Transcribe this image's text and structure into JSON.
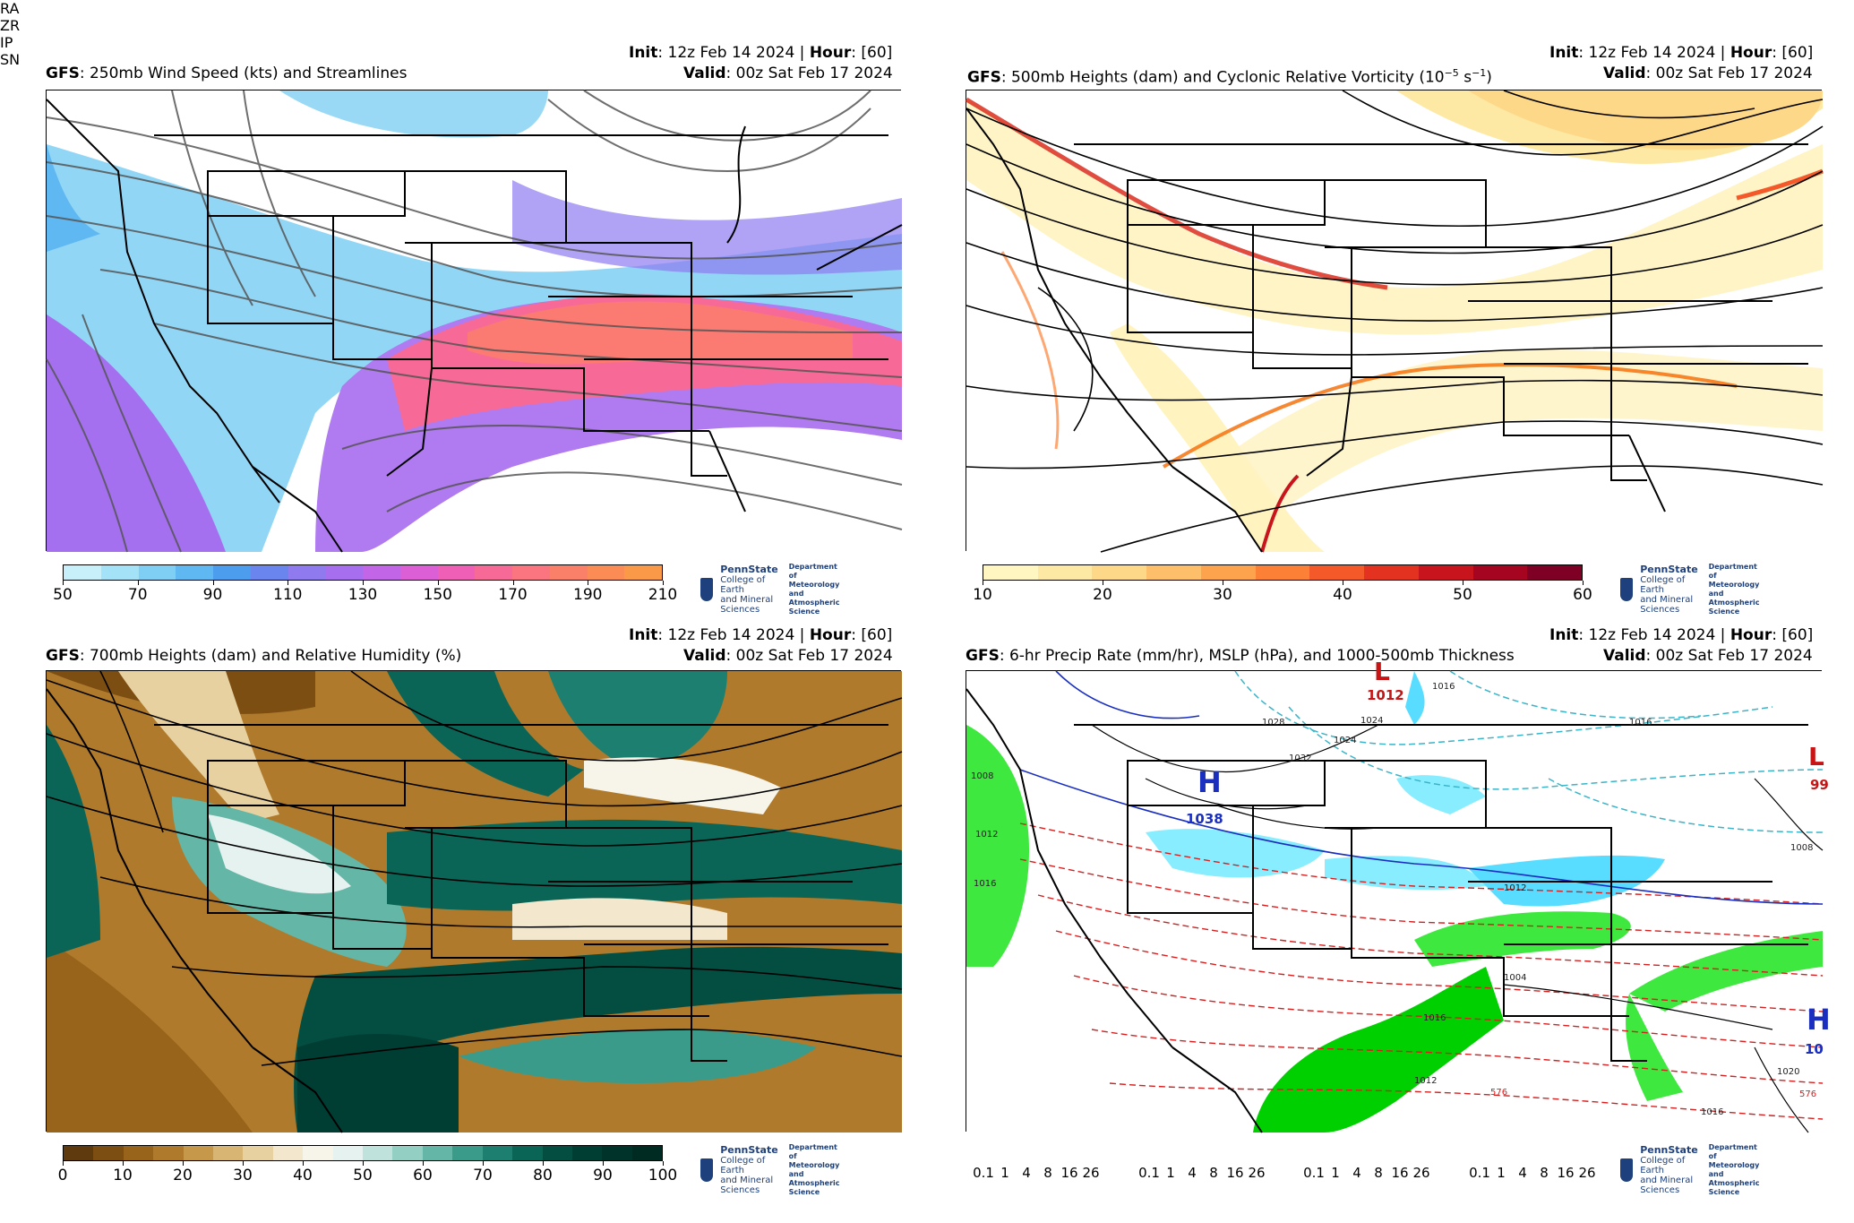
{
  "panels": [
    {
      "model": "GFS",
      "title": ": 250mb Wind Speed (kts) and Streamlines",
      "init_label": "Init",
      "init_value": ": 12z Feb 14 2024 | ",
      "hour_label": "Hour",
      "hour_value": ": [60]",
      "valid_label": "Valid",
      "valid_value": ": 00z Sat Feb 17 2024",
      "colorbar_ticks": [
        "50",
        "70",
        "90",
        "110",
        "130",
        "150",
        "170",
        "190",
        "210"
      ],
      "colorbar_colors": [
        "#c8f0fa",
        "#a4e2f7",
        "#7fcff4",
        "#5fb8f1",
        "#4c9ded",
        "#6a86ee",
        "#8f7af0",
        "#a76fef",
        "#c265e6",
        "#dc5fd6",
        "#ef5fb5",
        "#f76a98",
        "#fa7580",
        "#fb8069",
        "#fb8c56",
        "#fa9a48"
      ]
    },
    {
      "model": "GFS",
      "title": ": 500mb Heights (dam) and Cyclonic Relative Vorticity (10",
      "title_sup": "−5",
      "title_mid": " s",
      "title_sup2": "−1",
      "title_end": ")",
      "init_label": "Init",
      "init_value": ": 12z Feb 14 2024 | ",
      "hour_label": "Hour",
      "hour_value": ": [60]",
      "valid_label": "Valid",
      "valid_value": ": 00z Sat Feb 17 2024",
      "colorbar_ticks": [
        "10",
        "20",
        "30",
        "40",
        "50",
        "60"
      ],
      "colorbar_colors": [
        "#fff6c2",
        "#fee9a4",
        "#fed889",
        "#febf6a",
        "#fda24d",
        "#fc8136",
        "#f45a29",
        "#e3321f",
        "#c8151d",
        "#a50520",
        "#7f0025"
      ]
    },
    {
      "model": "GFS",
      "title": ": 700mb Heights (dam) and Relative Humidity (%)",
      "init_label": "Init",
      "init_value": ": 12z Feb 14 2024 | ",
      "hour_label": "Hour",
      "hour_value": ": [60]",
      "valid_label": "Valid",
      "valid_value": ": 00z Sat Feb 17 2024",
      "colorbar_ticks": [
        "0",
        "10",
        "20",
        "30",
        "40",
        "50",
        "60",
        "70",
        "80",
        "90",
        "100"
      ],
      "colorbar_colors": [
        "#5e3a0e",
        "#7d4e12",
        "#98631a",
        "#af7a2b",
        "#c6984a",
        "#d9b574",
        "#e8d1a0",
        "#f3e8cd",
        "#f7f4ea",
        "#e6f2ef",
        "#bfe3dc",
        "#93cfc3",
        "#64b6a6",
        "#3b9b8a",
        "#1d7f6f",
        "#0a6557",
        "#044d41",
        "#003d33",
        "#00332a",
        "#002b23"
      ]
    },
    {
      "model": "GFS",
      "title": ": 6-hr Precip Rate (mm/hr), MSLP (hPa), and 1000-500mb Thickness",
      "init_label": "Init",
      "init_value": ": 12z Feb 14 2024 | ",
      "hour_label": "Hour",
      "hour_value": ": [60]",
      "valid_label": "Valid",
      "valid_value": ": 00z Sat Feb 17 2024",
      "precip_types": [
        {
          "label": "RA",
          "colors": [
            "#00d000",
            "#3fe83f",
            "#8cf08c",
            "#f4f400",
            "#f4b800",
            "#f46a00",
            "#f40000",
            "#f400f4"
          ]
        },
        {
          "label": "ZR",
          "colors": [
            "#ffb8e4",
            "#ff98d8",
            "#ff78cc",
            "#ff58bc",
            "#f038a8",
            "#d82090",
            "#c00878",
            "#a00060"
          ]
        },
        {
          "label": "IP",
          "colors": [
            "#f0b8ff",
            "#e298ff",
            "#d478ff",
            "#c658f4",
            "#b43ce4",
            "#a020d0",
            "#8c08bc",
            "#7400a4"
          ]
        },
        {
          "label": "SN",
          "colors": [
            "#88eeff",
            "#58dcff",
            "#38c4ff",
            "#3898ff",
            "#3870ff",
            "#4040e8",
            "#7040e8",
            "#a840e8"
          ]
        }
      ],
      "precip_ticks": [
        "0.1",
        "1",
        "4",
        "8",
        "16",
        "26"
      ],
      "pressure_labels": {
        "h1": "H",
        "h1_val": "1038",
        "l1": "L",
        "l1_val": "1012",
        "h2": "H",
        "h2_val": "10",
        "l2": "L",
        "l2_val": "99"
      },
      "isobar_labels": [
        "1016",
        "1028",
        "1024",
        "1032",
        "1008",
        "1012",
        "1016",
        "1012",
        "1008",
        "1016",
        "1020",
        "1016",
        "1012",
        "1024",
        "1016",
        "1004"
      ],
      "thickness_labels": [
        "576",
        "576"
      ]
    }
  ],
  "logo": {
    "name": "PennState",
    "line1": "College of Earth",
    "line2": "and Mineral Sciences",
    "dept1": "Department of",
    "dept2": "Meteorology and",
    "dept3": "Atmospheric Science"
  },
  "colors": {
    "state_lines": "#000000",
    "streamline": "#555555",
    "height_contour": "#000000",
    "thickness_red": "#d62020",
    "thickness_blue": "#1a2fbf",
    "isobar_cyan": "#3bb4c8",
    "high_blue": "#1a2fbf",
    "low_red": "#c81414"
  }
}
